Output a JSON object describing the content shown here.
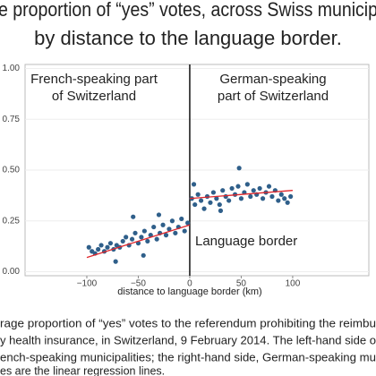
{
  "chart_data": {
    "type": "scatter",
    "title_lines": [
      "e proportion of “yes” votes, across Swiss municip",
      "by distance to the language border."
    ],
    "xlabel": "distance to language border (km)",
    "annotations": {
      "left": [
        "French-speaking part",
        "of Switzerland"
      ],
      "right": [
        "German-speaking",
        "part of Switzerland"
      ],
      "border": "Language border"
    },
    "caption_lines": [
      "rage proportion of “yes” votes to the referendum prohibiting the reimbu",
      "y health insurance, in Switzerland, 9 February 2014. The left-hand side o",
      "ench-speaking municipalities; the right-hand side, German-speaking mu",
      "es are the linear regression lines."
    ],
    "xlim": [
      -160,
      174
    ],
    "ylim": [
      -0.02,
      1.02
    ],
    "xticks": [
      {
        "value": -100,
        "label": "−100"
      },
      {
        "value": -50,
        "label": "−50"
      },
      0,
      50,
      100
    ],
    "yticks": [
      {
        "value": 0,
        "label": "0.00"
      },
      {
        "value": 0.25,
        "label": "0.25"
      },
      {
        "value": 0.5,
        "label": "0.50"
      },
      {
        "value": 0.75,
        "label": "0.75"
      },
      {
        "value": 1,
        "label": "1.00"
      }
    ],
    "border_x": 0,
    "series": [
      {
        "color": "#2f5f8a",
        "x": [
          -98,
          -95,
          -92,
          -89,
          -86,
          -83,
          -80,
          -77,
          -74,
          -71,
          -68,
          -65,
          -62,
          -59,
          -56,
          -53,
          -50,
          -47,
          -44,
          -41,
          -38,
          -35,
          -32,
          -29,
          -26,
          -23,
          -20,
          -17,
          -14,
          -11,
          -8,
          -5,
          -2,
          -55,
          -30,
          -72,
          -45
        ],
        "values": [
          0.12,
          0.1,
          0.09,
          0.11,
          0.13,
          0.1,
          0.12,
          0.14,
          0.11,
          0.13,
          0.12,
          0.15,
          0.17,
          0.13,
          0.16,
          0.19,
          0.14,
          0.17,
          0.2,
          0.15,
          0.18,
          0.22,
          0.16,
          0.19,
          0.23,
          0.18,
          0.21,
          0.25,
          0.19,
          0.22,
          0.26,
          0.2,
          0.24,
          0.27,
          0.28,
          0.05,
          0.08
        ]
      },
      {
        "color": "#2f5f8a",
        "x": [
          2,
          5,
          8,
          11,
          14,
          17,
          20,
          23,
          26,
          29,
          32,
          35,
          38,
          41,
          44,
          47,
          50,
          53,
          56,
          59,
          62,
          65,
          68,
          71,
          74,
          77,
          80,
          83,
          86,
          89,
          92,
          95,
          98,
          48,
          4,
          30
        ],
        "values": [
          0.36,
          0.33,
          0.38,
          0.35,
          0.31,
          0.37,
          0.34,
          0.39,
          0.36,
          0.33,
          0.4,
          0.37,
          0.35,
          0.41,
          0.38,
          0.42,
          0.36,
          0.39,
          0.43,
          0.37,
          0.4,
          0.38,
          0.41,
          0.36,
          0.39,
          0.42,
          0.37,
          0.4,
          0.35,
          0.38,
          0.36,
          0.34,
          0.37,
          0.51,
          0.43,
          0.3
        ]
      }
    ],
    "fits": [
      {
        "color": "#e0262b",
        "x": [
          -100,
          0
        ],
        "values": [
          0.07,
          0.23
        ]
      },
      {
        "color": "#e0262b",
        "x": [
          0,
          100
        ],
        "values": [
          0.36,
          0.4
        ]
      }
    ]
  }
}
